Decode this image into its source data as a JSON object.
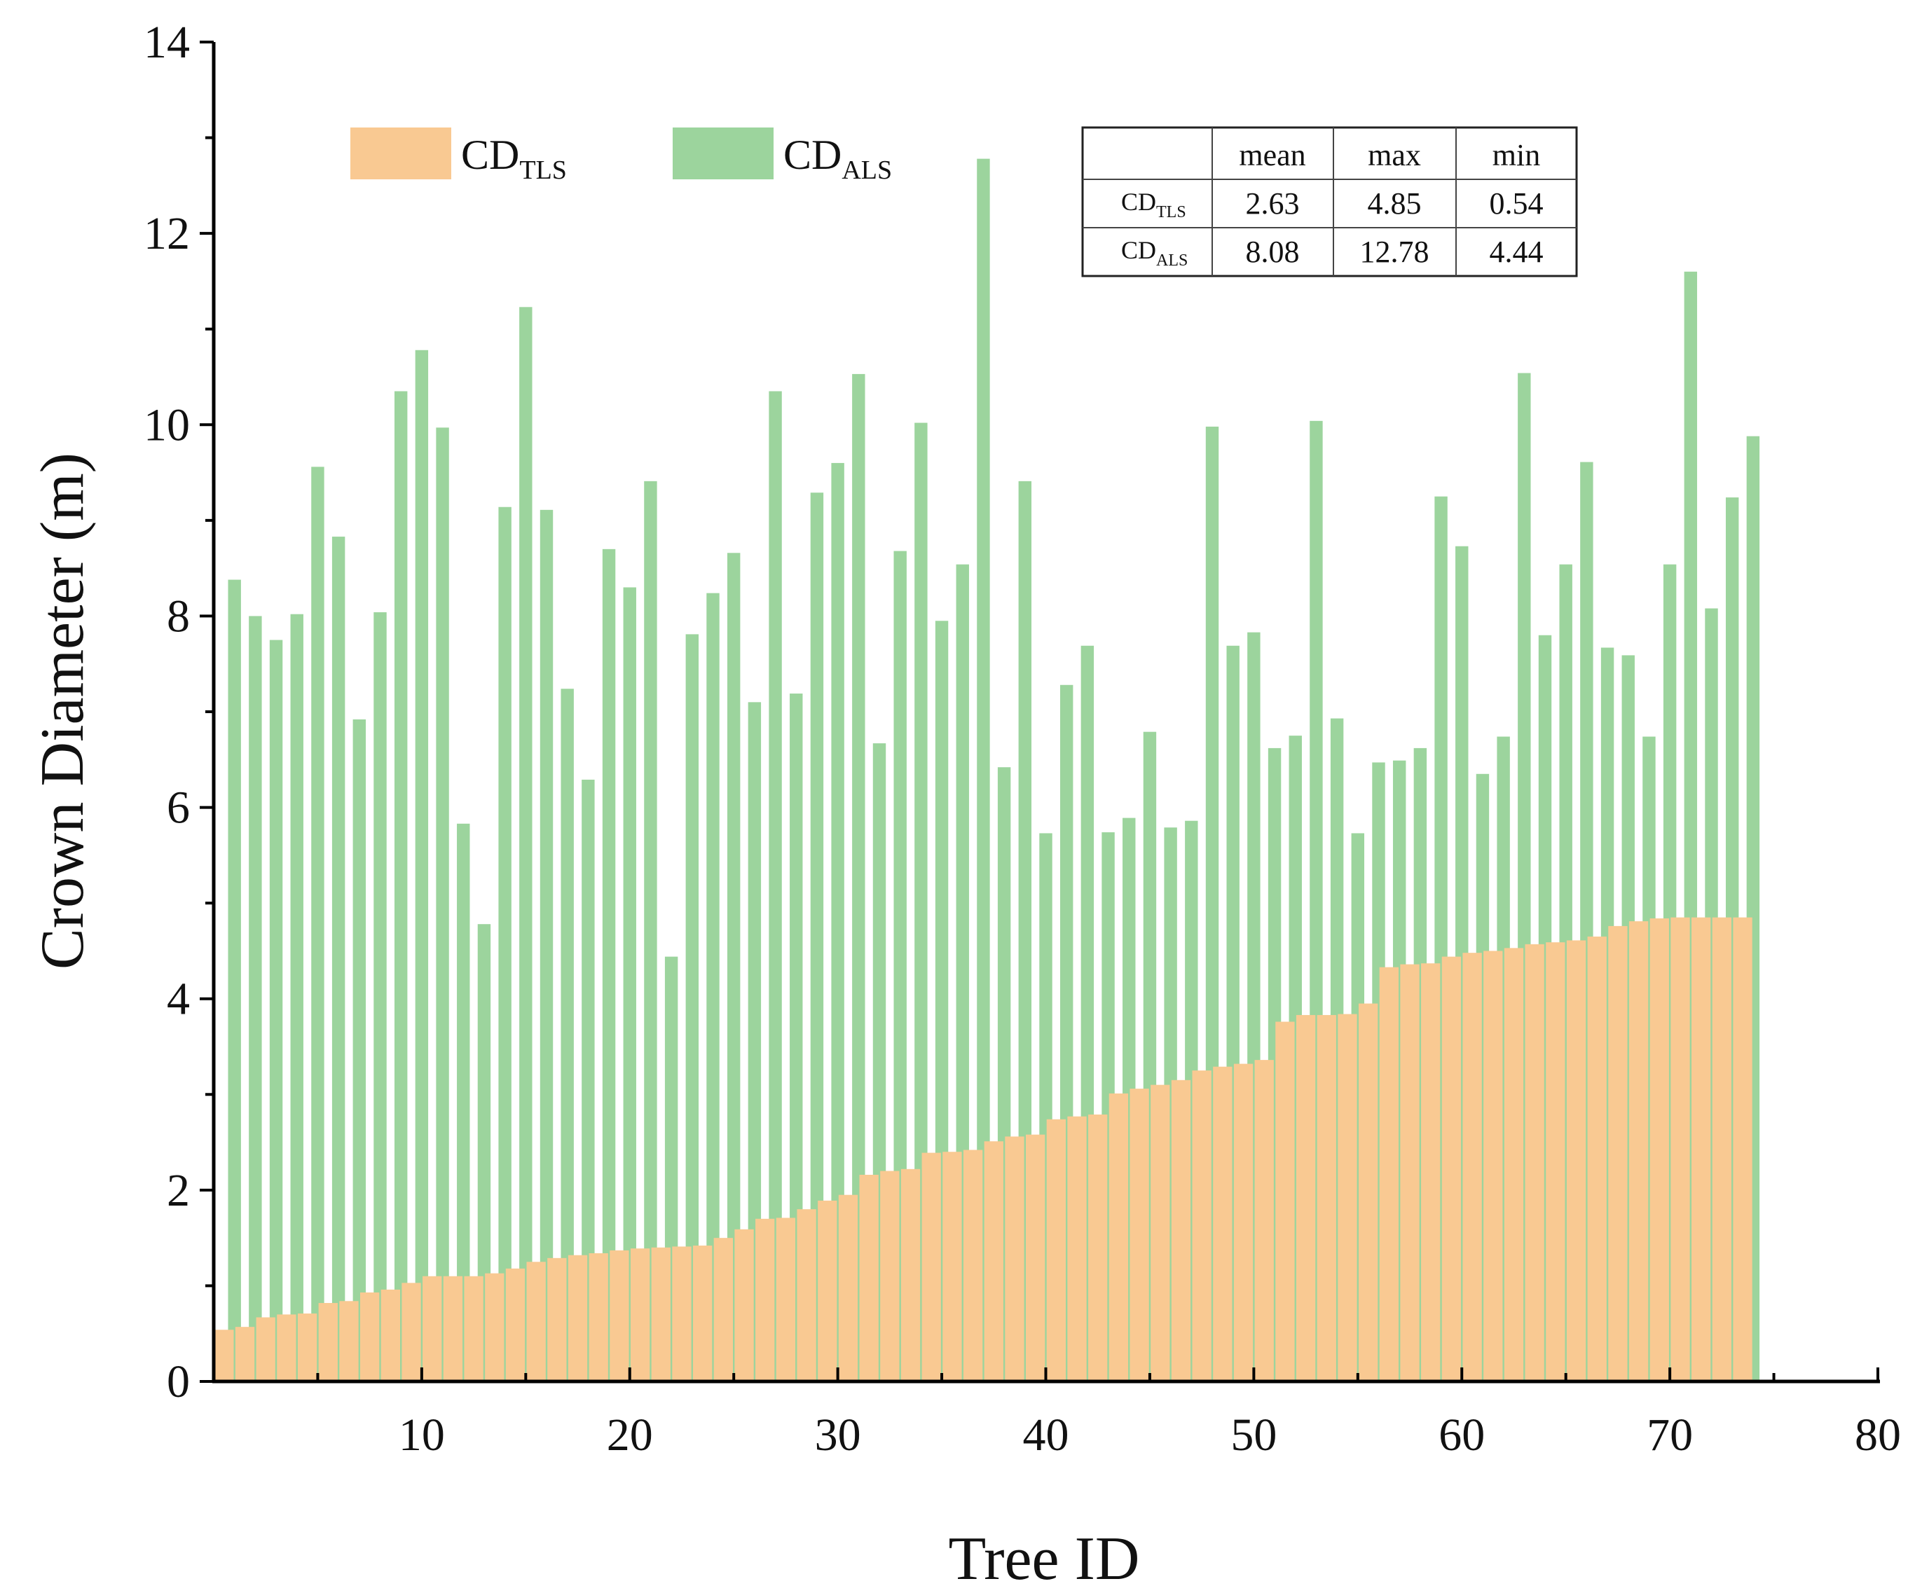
{
  "chart_data": {
    "type": "bar",
    "xlabel": "Tree ID",
    "ylabel": "Crown Diameter (m)",
    "xlim": [
      0,
      80
    ],
    "ylim": [
      0,
      14
    ],
    "x_ticks": [
      10,
      20,
      30,
      40,
      50,
      60,
      70,
      80
    ],
    "y_ticks": [
      0,
      2,
      4,
      6,
      8,
      10,
      12,
      14
    ],
    "x_tick_labels": [
      "10",
      "20",
      "30",
      "40",
      "50",
      "60",
      "70",
      "80"
    ],
    "y_tick_labels": [
      "0",
      "2",
      "4",
      "6",
      "8",
      "10",
      "12",
      "14"
    ],
    "legend": [
      {
        "main": "CD",
        "sub": "TLS",
        "color": "#F9C992"
      },
      {
        "main": "CD",
        "sub": "ALS",
        "color": "#9CD49D"
      }
    ],
    "series": [
      {
        "name": "CD_ALS",
        "color": "#9CD49D",
        "values": [
          8.38,
          8.0,
          7.75,
          8.02,
          9.56,
          8.83,
          6.92,
          8.04,
          10.35,
          10.78,
          9.97,
          5.83,
          4.78,
          9.14,
          11.23,
          9.11,
          7.24,
          6.29,
          8.7,
          8.3,
          9.41,
          4.44,
          7.81,
          8.24,
          8.66,
          7.1,
          10.35,
          7.19,
          9.29,
          9.6,
          10.53,
          6.67,
          8.68,
          10.02,
          7.95,
          8.54,
          12.78,
          6.42,
          9.41,
          5.73,
          7.28,
          7.69,
          5.74,
          5.89,
          6.79,
          5.79,
          5.86,
          9.98,
          7.69,
          7.83,
          6.62,
          6.75,
          10.04,
          6.93,
          5.73,
          6.47,
          6.49,
          6.62,
          9.25,
          8.73,
          6.35,
          6.74,
          10.54,
          7.8,
          8.54,
          9.61,
          7.67,
          7.59,
          6.74,
          8.54,
          11.6,
          8.08,
          9.24,
          9.88
        ]
      },
      {
        "name": "CD_TLS",
        "color": "#F9C992",
        "values": [
          0.54,
          0.57,
          0.67,
          0.7,
          0.71,
          0.82,
          0.84,
          0.93,
          0.96,
          1.03,
          1.1,
          1.1,
          1.1,
          1.13,
          1.18,
          1.25,
          1.29,
          1.32,
          1.34,
          1.37,
          1.39,
          1.4,
          1.41,
          1.42,
          1.5,
          1.59,
          1.7,
          1.71,
          1.8,
          1.89,
          1.95,
          2.16,
          2.2,
          2.22,
          2.39,
          2.4,
          2.42,
          2.51,
          2.56,
          2.58,
          2.74,
          2.77,
          2.79,
          3.01,
          3.06,
          3.1,
          3.15,
          3.25,
          3.29,
          3.32,
          3.36,
          3.76,
          3.83,
          3.83,
          3.84,
          3.95,
          4.33,
          4.36,
          4.37,
          4.44,
          4.48,
          4.5,
          4.53,
          4.57,
          4.59,
          4.61,
          4.65,
          4.76,
          4.81,
          4.84,
          4.85,
          4.85,
          4.85,
          4.85
        ]
      }
    ],
    "stats_table": {
      "headers": [
        "",
        "mean",
        "max",
        "min"
      ],
      "rows": [
        {
          "label_main": "CD",
          "label_sub": "TLS",
          "values": [
            "2.63",
            "4.85",
            "0.54"
          ]
        },
        {
          "label_main": "CD",
          "label_sub": "ALS",
          "values": [
            "8.08",
            "12.78",
            "4.44"
          ]
        }
      ]
    }
  }
}
